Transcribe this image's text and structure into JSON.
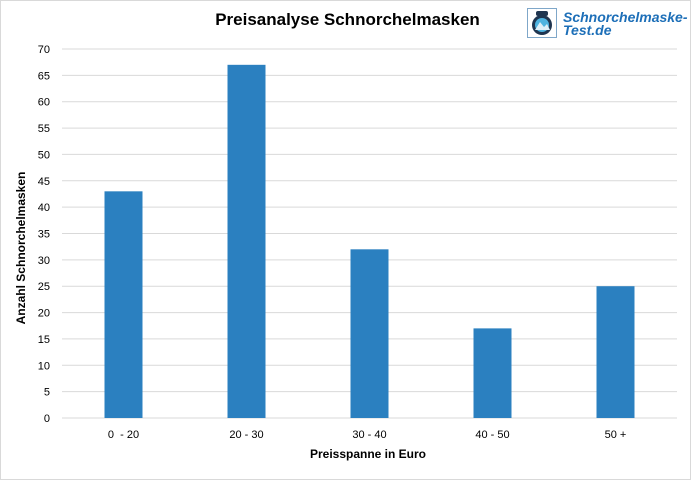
{
  "title": "Preisanalyse Schnorchelmasken",
  "logo": {
    "line1": "Schnorchelmaske-",
    "line2": "Test.de",
    "icon": "diving-mask-icon"
  },
  "chart_data": {
    "type": "bar",
    "title": "Preisanalyse Schnorchelmasken",
    "categories": [
      "0  - 20",
      "20 - 30",
      "30 - 40",
      "40 - 50",
      "50 +"
    ],
    "values": [
      43,
      67,
      32,
      17,
      25
    ],
    "xlabel": "Preisspanne in Euro",
    "ylabel": "Anzahl  Schnorchelmasken",
    "ylim": [
      0,
      70
    ],
    "yticks": [
      0,
      5,
      10,
      15,
      20,
      25,
      30,
      35,
      40,
      45,
      50,
      55,
      60,
      65,
      70
    ],
    "grid": true,
    "bar_color": "#2b80c0",
    "legend": "none"
  }
}
